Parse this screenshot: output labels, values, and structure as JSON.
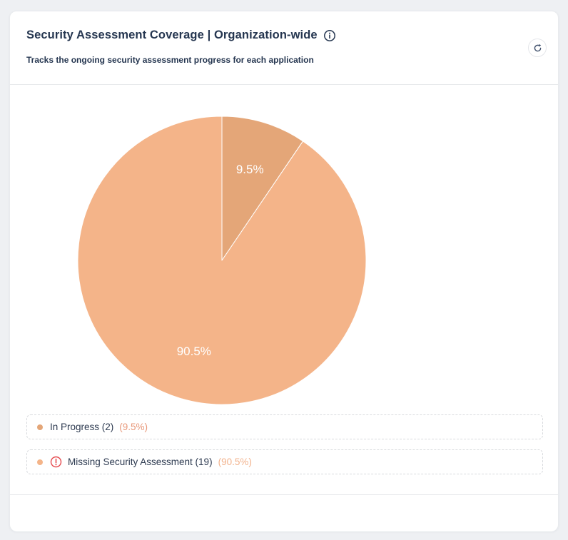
{
  "header": {
    "title": "Security Assessment Coverage | Organization-wide",
    "subtitle": "Tracks the ongoing security assessment progress for each application"
  },
  "colors": {
    "in_progress": "#e4a678",
    "missing": "#f4b489",
    "title_text": "#253650",
    "warning_red": "#e5484d",
    "page_bg": "#eef0f3",
    "dashed_border": "#d8dadd"
  },
  "chart_data": {
    "type": "pie",
    "title": "Security Assessment Coverage | Organization-wide",
    "start_angle_deg": 0,
    "direction": "clockwise",
    "legend_position": "bottom",
    "label_color": "#ffffff",
    "slices": [
      {
        "label": "In Progress",
        "count": 2,
        "percent": 9.5,
        "data_label": "9.5%",
        "color": "#e4a678"
      },
      {
        "label": "Missing Security Assessment",
        "count": 19,
        "percent": 90.5,
        "data_label": "90.5%",
        "color": "#f4b489"
      }
    ]
  },
  "legend": {
    "items": [
      {
        "text": "In Progress (2)",
        "percent_text": "(9.5%)",
        "dot_color": "#e4a678",
        "percent_color": "#e8987a",
        "has_warning_icon": false
      },
      {
        "text": "Missing Security Assessment (19)",
        "percent_text": "(90.5%)",
        "dot_color": "#f4b489",
        "percent_color": "#f2b28c",
        "has_warning_icon": true
      }
    ]
  }
}
